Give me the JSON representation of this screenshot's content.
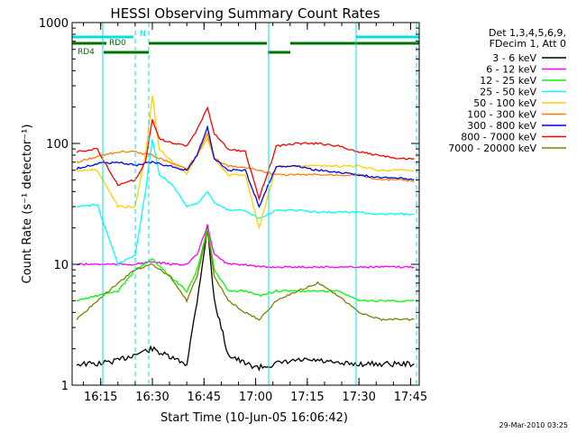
{
  "chart_data": {
    "type": "line",
    "title": "HESSI Observing Summary Count Rates",
    "xlabel": "Start Time (10-Jun-05 16:06:42)",
    "ylabel": "Count Rate (s⁻¹ detector⁻¹)",
    "y_scale": "log",
    "ylim": [
      1,
      1000
    ],
    "xlim": [
      "16:06:42",
      "17:47:30"
    ],
    "x_ticks": [
      "16:15",
      "16:30",
      "16:45",
      "17:00",
      "17:15",
      "17:30",
      "17:45"
    ],
    "y_ticks": [
      "1",
      "10",
      "100",
      "1000"
    ],
    "footer": "29-Mar-2010 03:25",
    "legend_header": [
      "Det 1,3,4,5,6,9,",
      "FDecim 1, Att 0"
    ],
    "legend_position": "right",
    "flags": [
      {
        "label": "N",
        "color": "#00e0e0"
      },
      {
        "label": "RD0",
        "color": "#007000"
      },
      {
        "label": "RD4",
        "color": "#007000"
      }
    ],
    "series": [
      {
        "name": "3 - 6 keV",
        "color": "#000000",
        "x": [
          "16:08",
          "16:14",
          "16:20",
          "16:25",
          "16:30",
          "16:35",
          "16:40",
          "16:43",
          "16:46",
          "16:48",
          "16:52",
          "16:57",
          "17:01",
          "17:06",
          "17:12",
          "17:18",
          "17:24",
          "17:30",
          "17:36",
          "17:42",
          "17:46"
        ],
        "y": [
          1.5,
          1.5,
          1.6,
          1.8,
          2.0,
          1.7,
          1.5,
          5.0,
          20,
          5.0,
          1.8,
          1.5,
          1.4,
          1.5,
          1.6,
          1.6,
          1.5,
          1.5,
          1.5,
          1.5,
          1.5
        ]
      },
      {
        "name": "6 - 12 keV",
        "color": "#ff00ff",
        "x": [
          "16:08",
          "16:14",
          "16:20",
          "16:25",
          "16:30",
          "16:35",
          "16:40",
          "16:43",
          "16:46",
          "16:48",
          "16:52",
          "16:57",
          "17:01",
          "17:06",
          "17:12",
          "17:18",
          "17:24",
          "17:30",
          "17:36",
          "17:42",
          "17:46"
        ],
        "y": [
          10,
          10,
          10,
          10,
          10.5,
          10,
          10,
          12,
          21,
          12,
          10,
          10,
          9.5,
          9.5,
          9.5,
          9.5,
          9.5,
          9.5,
          9.5,
          9.5,
          9.5
        ]
      },
      {
        "name": "12 - 25 keV",
        "color": "#00ff00",
        "x": [
          "16:08",
          "16:14",
          "16:20",
          "16:25",
          "16:30",
          "16:35",
          "16:40",
          "16:43",
          "16:46",
          "16:48",
          "16:52",
          "16:57",
          "17:01",
          "17:06",
          "17:12",
          "17:18",
          "17:24",
          "17:30",
          "17:36",
          "17:42",
          "17:46"
        ],
        "y": [
          5,
          5.5,
          6,
          9,
          11,
          8,
          6,
          9,
          20,
          9,
          6,
          6,
          5.5,
          6,
          6,
          6,
          6,
          5,
          5,
          5,
          5
        ]
      },
      {
        "name": "25 - 50 keV",
        "color": "#00ffff",
        "x": [
          "16:08",
          "16:14",
          "16:20",
          "16:25",
          "16:28",
          "16:30",
          "16:32",
          "16:36",
          "16:40",
          "16:43",
          "16:46",
          "16:48",
          "16:52",
          "16:57",
          "17:01",
          "17:06",
          "17:12",
          "17:18",
          "17:24",
          "17:30",
          "17:36",
          "17:42",
          "17:46"
        ],
        "y": [
          30,
          31,
          10,
          12,
          40,
          110,
          55,
          45,
          30,
          32,
          40,
          32,
          28,
          28,
          24,
          28,
          28,
          27,
          27,
          27,
          26,
          26,
          26
        ]
      },
      {
        "name": "50 - 100 keV",
        "color": "#ffd000",
        "x": [
          "16:08",
          "16:14",
          "16:20",
          "16:25",
          "16:28",
          "16:30",
          "16:32",
          "16:36",
          "16:40",
          "16:43",
          "16:46",
          "16:48",
          "16:52",
          "16:57",
          "17:01",
          "17:06",
          "17:12",
          "17:18",
          "17:24",
          "17:30",
          "17:36",
          "17:42",
          "17:46"
        ],
        "y": [
          60,
          60,
          30,
          30,
          80,
          250,
          90,
          70,
          55,
          80,
          110,
          75,
          55,
          55,
          20,
          65,
          65,
          65,
          65,
          65,
          60,
          60,
          60
        ]
      },
      {
        "name": "100 - 300 keV",
        "color": "#ff8000",
        "x": [
          "16:08",
          "16:14",
          "16:20",
          "16:25",
          "16:30",
          "16:35",
          "16:40",
          "16:43",
          "16:46",
          "16:48",
          "16:52",
          "16:57",
          "17:01",
          "17:06",
          "17:12",
          "17:18",
          "17:24",
          "17:30",
          "17:36",
          "17:42",
          "17:46"
        ],
        "y": [
          70,
          78,
          85,
          85,
          80,
          70,
          62,
          80,
          120,
          75,
          65,
          63,
          60,
          55,
          55,
          55,
          55,
          55,
          50,
          50,
          48
        ]
      },
      {
        "name": "300 - 800 keV",
        "color": "#0000ff",
        "x": [
          "16:08",
          "16:14",
          "16:20",
          "16:25",
          "16:30",
          "16:35",
          "16:40",
          "16:43",
          "16:46",
          "16:48",
          "16:52",
          "16:57",
          "17:01",
          "17:06",
          "17:12",
          "17:18",
          "17:24",
          "17:30",
          "17:36",
          "17:42",
          "17:46"
        ],
        "y": [
          62,
          68,
          70,
          66,
          70,
          65,
          60,
          80,
          135,
          75,
          60,
          60,
          30,
          65,
          65,
          60,
          58,
          55,
          52,
          52,
          50
        ]
      },
      {
        "name": "800 - 7000 keV",
        "color": "#ff0000",
        "x": [
          "16:08",
          "16:14",
          "16:20",
          "16:25",
          "16:28",
          "16:30",
          "16:32",
          "16:36",
          "16:40",
          "16:43",
          "16:46",
          "16:48",
          "16:52",
          "16:57",
          "17:01",
          "17:06",
          "17:12",
          "17:18",
          "17:24",
          "17:30",
          "17:36",
          "17:42",
          "17:46"
        ],
        "y": [
          85,
          90,
          45,
          50,
          70,
          160,
          110,
          100,
          95,
          130,
          200,
          120,
          90,
          85,
          35,
          95,
          100,
          100,
          95,
          85,
          80,
          75,
          75
        ]
      },
      {
        "name": "7000 - 20000 keV",
        "color": "#808000",
        "x": [
          "16:08",
          "16:14",
          "16:20",
          "16:25",
          "16:30",
          "16:35",
          "16:40",
          "16:43",
          "16:46",
          "16:48",
          "16:52",
          "16:57",
          "17:01",
          "17:06",
          "17:12",
          "17:18",
          "17:24",
          "17:30",
          "17:36",
          "17:42",
          "17:46"
        ],
        "y": [
          3.5,
          5,
          7,
          9,
          10,
          8,
          5,
          8,
          19,
          8,
          5,
          4,
          3.5,
          5,
          6,
          7,
          5.5,
          4,
          3.5,
          3.5,
          3.5
        ]
      }
    ]
  }
}
